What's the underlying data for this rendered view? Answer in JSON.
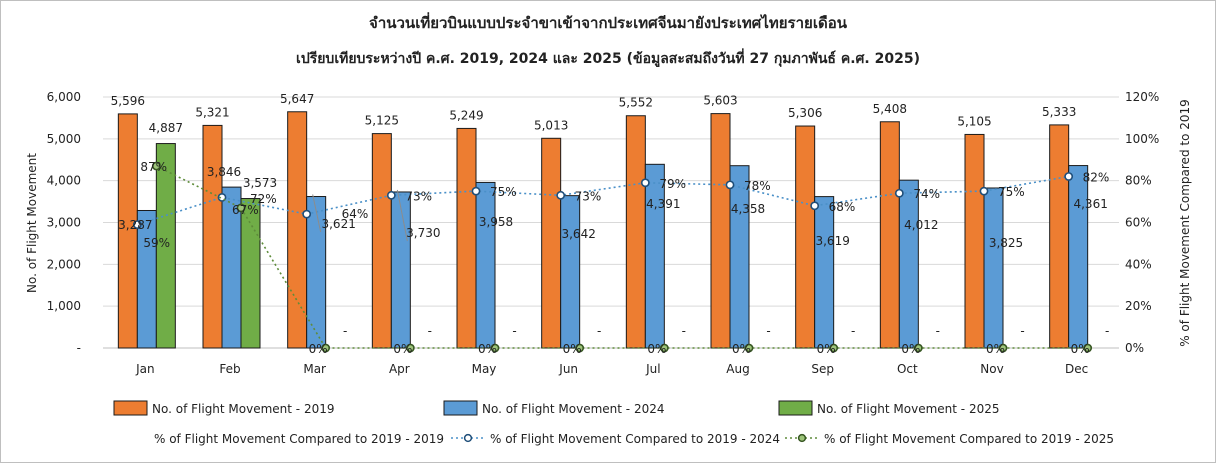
{
  "chart_data": {
    "type": "bar",
    "title": "จำนวนเที่ยวบินแบบประจำขาเข้าจากประเทศจีนมายังประเทศไทยรายเดือน",
    "subtitle": "เปรียบเทียบระหว่างปี  ค.ศ. 2019, 2024 และ 2025 (ข้อมูลสะสมถึงวันที่ 27 กุมภาพันธ์ ค.ศ. 2025)",
    "ylabel": "No. of Flight Movement",
    "ylabel_right": "% of Flight Movement Compared to 2019",
    "ylim": [
      0,
      6000
    ],
    "ylim_right": [
      0,
      120
    ],
    "y_ticks": [
      "-",
      "1,000",
      "2,000",
      "3,000",
      "4,000",
      "5,000",
      "6,000"
    ],
    "y_ticks_right": [
      "0%",
      "20%",
      "40%",
      "60%",
      "80%",
      "100%",
      "120%"
    ],
    "categories": [
      "Jan",
      "Feb",
      "Mar",
      "Apr",
      "May",
      "Jun",
      "Jul",
      "Aug",
      "Sep",
      "Oct",
      "Nov",
      "Dec"
    ],
    "series": [
      {
        "name": "No. of Flight Movement - 2019",
        "color": "#ED7D31",
        "values": [
          5596,
          5321,
          5647,
          5125,
          5249,
          5013,
          5552,
          5603,
          5306,
          5408,
          5105,
          5333
        ],
        "labels": [
          "5,596",
          "5,321",
          "5,647",
          "5,125",
          "5,249",
          "5,013",
          "5,552",
          "5,603",
          "5,306",
          "5,408",
          "5,105",
          "5,333"
        ]
      },
      {
        "name": "No. of Flight Movement - 2024",
        "color": "#5B9BD5",
        "values": [
          3287,
          3846,
          3621,
          3730,
          3958,
          3642,
          4391,
          4358,
          3619,
          4012,
          3825,
          4361
        ],
        "labels": [
          "3,287",
          "3,846",
          "3,621",
          "3,730",
          "3,958",
          "3,642",
          "4,391",
          "4,358",
          "3,619",
          "4,012",
          "3,825",
          "4,361"
        ]
      },
      {
        "name": "No. of Flight Movement - 2025",
        "color": "#70AD47",
        "values": [
          4887,
          3573,
          0,
          0,
          0,
          0,
          0,
          0,
          0,
          0,
          0,
          0
        ],
        "labels": [
          "4,887",
          "3,573",
          "-",
          "-",
          "-",
          "-",
          "-",
          "-",
          "-",
          "-",
          "-",
          "-"
        ]
      }
    ],
    "line_series": [
      {
        "name": "% of Flight Movement Compared to 2019 - 2019",
        "color": "#ED7D31",
        "values": []
      },
      {
        "name": "% of Flight Movement Compared to 2019 - 2024",
        "color": "#4A90C8",
        "values": [
          59,
          72,
          64,
          73,
          75,
          73,
          79,
          78,
          68,
          74,
          75,
          82
        ],
        "labels": [
          "59%",
          "72%",
          "64%",
          "73%",
          "75%",
          "73%",
          "79%",
          "78%",
          "68%",
          "74%",
          "75%",
          "82%"
        ]
      },
      {
        "name": "% of Flight Movement Compared to 2019 - 2025",
        "color": "#5E8C3A",
        "values": [
          87,
          67,
          0,
          0,
          0,
          0,
          0,
          0,
          0,
          0,
          0,
          0
        ],
        "labels": [
          "87%",
          "67%",
          "0%",
          "0%",
          "0%",
          "0%",
          "0%",
          "0%",
          "0%",
          "0%",
          "0%",
          "0%"
        ]
      }
    ],
    "legend_position": "bottom",
    "grid": true
  }
}
